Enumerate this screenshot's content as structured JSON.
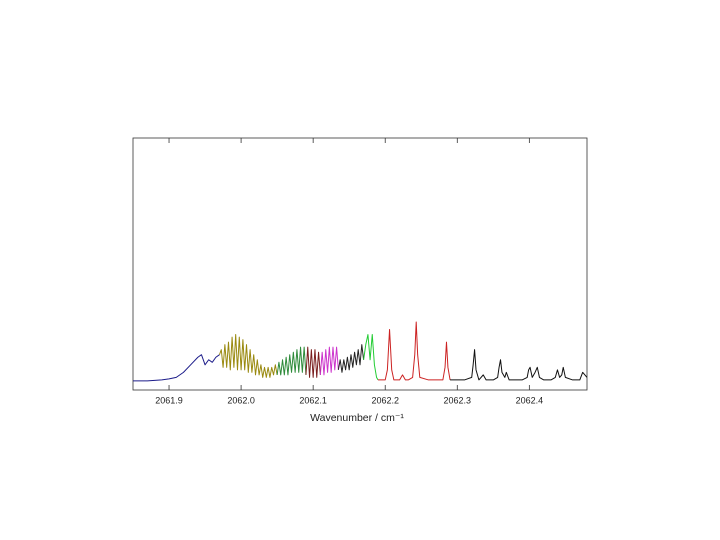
{
  "chart_data": {
    "type": "line",
    "xlabel": "Wavenumber / cm⁻¹",
    "xlim": [
      2061.85,
      2062.48
    ],
    "ylim": [
      0,
      1
    ],
    "xticks": [
      2061.9,
      {
        "value": 2062.0,
        "label": "2062.0"
      },
      2062.1,
      2062.2,
      2062.3,
      2062.4
    ],
    "series": [
      {
        "color": "#1c1c8a",
        "x": [
          2061.85,
          2061.87,
          2061.89,
          2061.9,
          2061.91,
          2061.92,
          2061.93,
          2061.94,
          2061.945,
          2061.95,
          2061.955,
          2061.96,
          2061.965,
          2061.97
        ],
        "values": [
          0.036,
          0.036,
          0.04,
          0.044,
          0.05,
          0.07,
          0.1,
          0.13,
          0.14,
          0.1,
          0.12,
          0.11,
          0.13,
          0.14
        ]
      },
      {
        "color": "#9a8a10",
        "x": [
          2061.97,
          2061.9725,
          2061.975,
          2061.9775,
          2061.98,
          2061.9825,
          2061.985,
          2061.9875,
          2061.99,
          2061.9925,
          2061.995,
          2061.9975,
          2062.0,
          2062.0025,
          2062.005,
          2062.0075,
          2062.01,
          2062.0125,
          2062.015,
          2062.0175,
          2062.02,
          2062.0225,
          2062.025,
          2062.0275,
          2062.03,
          2062.0325,
          2062.035,
          2062.0375,
          2062.04,
          2062.0425,
          2062.045,
          2062.0475,
          2062.05
        ],
        "values": [
          0.14,
          0.16,
          0.09,
          0.18,
          0.09,
          0.19,
          0.08,
          0.21,
          0.09,
          0.22,
          0.08,
          0.21,
          0.08,
          0.2,
          0.08,
          0.18,
          0.07,
          0.16,
          0.07,
          0.14,
          0.06,
          0.12,
          0.06,
          0.1,
          0.05,
          0.09,
          0.05,
          0.09,
          0.05,
          0.09,
          0.06,
          0.1,
          0.06
        ]
      },
      {
        "color": "#2e8b3a",
        "x": [
          2062.05,
          2062.0525,
          2062.055,
          2062.0575,
          2062.06,
          2062.0625,
          2062.065,
          2062.0675,
          2062.07,
          2062.0725,
          2062.075,
          2062.0775,
          2062.08,
          2062.0825,
          2062.085,
          2062.0875,
          2062.09
        ],
        "values": [
          0.06,
          0.11,
          0.06,
          0.12,
          0.06,
          0.13,
          0.06,
          0.14,
          0.07,
          0.15,
          0.07,
          0.16,
          0.07,
          0.17,
          0.07,
          0.17,
          0.06
        ]
      },
      {
        "color": "#7a1e1e",
        "x": [
          2062.09,
          2062.0925,
          2062.095,
          2062.0975,
          2062.1,
          2062.1025,
          2062.105,
          2062.1075,
          2062.11
        ],
        "values": [
          0.06,
          0.17,
          0.05,
          0.16,
          0.05,
          0.16,
          0.05,
          0.15,
          0.06
        ]
      },
      {
        "color": "#cc33cc",
        "x": [
          2062.11,
          2062.1125,
          2062.115,
          2062.1175,
          2062.12,
          2062.1225,
          2062.125,
          2062.1275,
          2062.13,
          2062.1325,
          2062.135
        ],
        "values": [
          0.06,
          0.15,
          0.06,
          0.16,
          0.07,
          0.17,
          0.07,
          0.17,
          0.08,
          0.17,
          0.08
        ]
      },
      {
        "color": "#222222",
        "x": [
          2062.135,
          2062.1375,
          2062.14,
          2062.1425,
          2062.145,
          2062.1475,
          2062.15,
          2062.1525,
          2062.155,
          2062.1575,
          2062.16,
          2062.1625,
          2062.165,
          2062.1675,
          2062.17
        ],
        "values": [
          0.08,
          0.12,
          0.07,
          0.12,
          0.08,
          0.13,
          0.08,
          0.14,
          0.09,
          0.15,
          0.1,
          0.16,
          0.1,
          0.18,
          0.12
        ]
      },
      {
        "color": "#22cc33",
        "x": [
          2062.17,
          2062.173,
          2062.176,
          2062.179,
          2062.182,
          2062.185,
          2062.188,
          2062.19
        ],
        "values": [
          0.12,
          0.18,
          0.22,
          0.12,
          0.22,
          0.1,
          0.05,
          0.04
        ]
      },
      {
        "color": "#cc2222",
        "x": [
          2062.19,
          2062.2,
          2062.203,
          2062.206,
          2062.209,
          2062.212,
          2062.22,
          2062.224,
          2062.228,
          2062.232,
          2062.238,
          2062.241,
          2062.243,
          2062.245,
          2062.248,
          2062.26,
          2062.28,
          2062.283,
          2062.285,
          2062.287,
          2062.29
        ],
        "values": [
          0.04,
          0.04,
          0.08,
          0.24,
          0.08,
          0.04,
          0.04,
          0.06,
          0.04,
          0.04,
          0.05,
          0.14,
          0.27,
          0.14,
          0.05,
          0.04,
          0.04,
          0.09,
          0.19,
          0.09,
          0.04
        ]
      },
      {
        "color": "#111111",
        "x": [
          2062.29,
          2062.31,
          2062.32,
          2062.322,
          2062.324,
          2062.326,
          2062.33,
          2062.336,
          2062.34,
          2062.35,
          2062.356,
          2062.358,
          2062.36,
          2062.362,
          2062.366,
          2062.368,
          2062.372,
          2062.38,
          2062.39,
          2062.397,
          2062.399,
          2062.401,
          2062.404,
          2062.408,
          2062.411,
          2062.414,
          2062.42,
          2062.43,
          2062.436,
          2062.439,
          2062.442,
          2062.445,
          2062.447,
          2062.45,
          2062.46,
          2062.47,
          2062.474,
          2062.48
        ],
        "values": [
          0.04,
          0.04,
          0.05,
          0.1,
          0.16,
          0.08,
          0.04,
          0.06,
          0.04,
          0.04,
          0.05,
          0.09,
          0.12,
          0.07,
          0.05,
          0.07,
          0.04,
          0.04,
          0.04,
          0.05,
          0.08,
          0.09,
          0.05,
          0.07,
          0.09,
          0.05,
          0.04,
          0.04,
          0.05,
          0.08,
          0.05,
          0.06,
          0.09,
          0.05,
          0.04,
          0.04,
          0.07,
          0.05
        ]
      }
    ]
  }
}
